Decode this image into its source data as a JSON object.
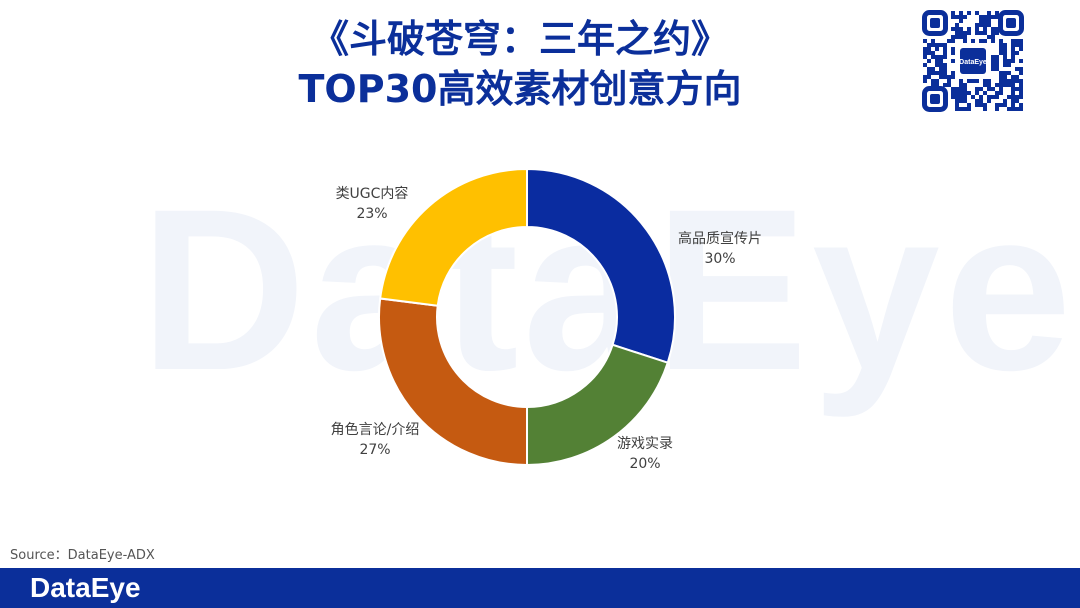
{
  "header": {
    "title_line1": "《斗破苍穹：三年之约》",
    "title_line2": "TOP30高效素材创意方向"
  },
  "watermark": {
    "text": "DataEye"
  },
  "qr": {
    "badge_text": "DataEye"
  },
  "chart_data": {
    "type": "pie",
    "donut": true,
    "labels": [
      "高品质宣传片",
      "游戏实录",
      "角色言论/介绍",
      "类UGC内容"
    ],
    "values": [
      30,
      20,
      27,
      23
    ],
    "value_labels": [
      "30%",
      "20%",
      "27%",
      "23%"
    ],
    "colors": [
      "#0a2ca0",
      "#538135",
      "#c55a11",
      "#ffc000"
    ],
    "legend": "none"
  },
  "source": {
    "text": "Source：DataEye-ADX"
  },
  "footer": {
    "logo": "DataEye"
  }
}
